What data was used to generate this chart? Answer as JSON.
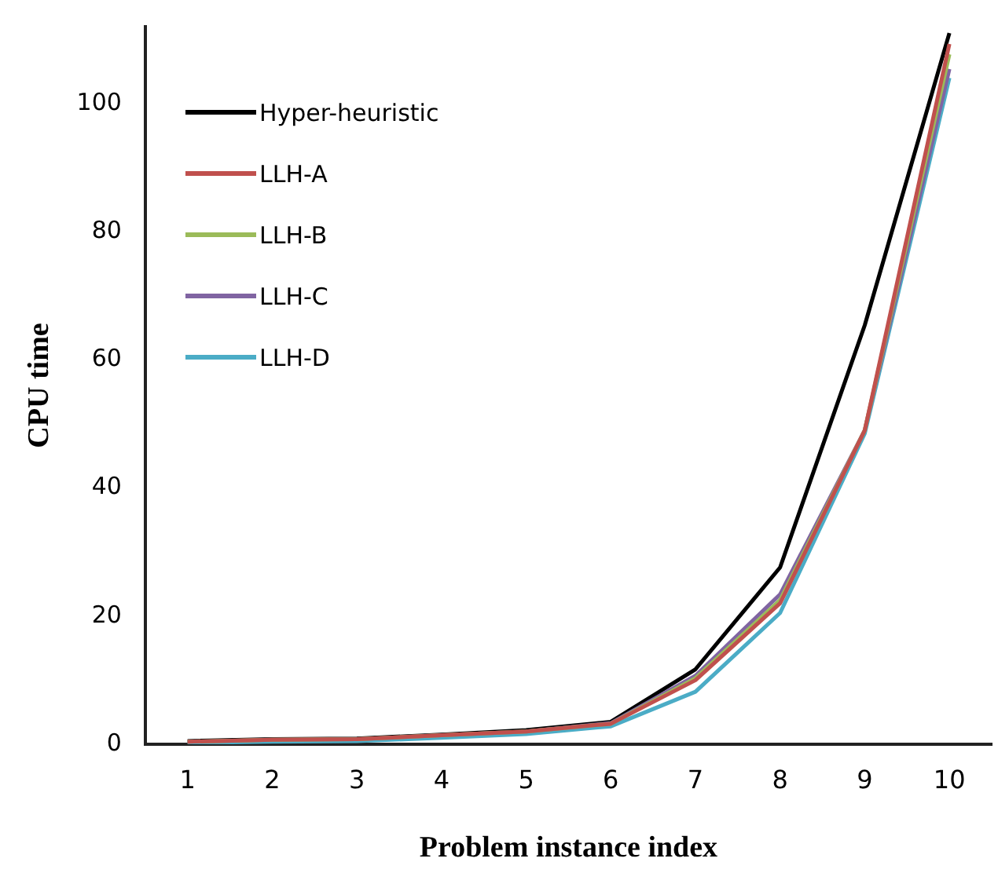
{
  "chart_data": {
    "type": "line",
    "xlabel": "Problem instance index",
    "ylabel": "CPU time",
    "categories": [
      "1",
      "2",
      "3",
      "4",
      "5",
      "6",
      "7",
      "8",
      "9",
      "10"
    ],
    "series": [
      {
        "name": "Hyper-heuristic",
        "color": "#000000",
        "values": [
          0.5,
          0.8,
          0.9,
          1.5,
          2.2,
          3.5,
          11.7,
          27.6,
          65.4,
          111
        ]
      },
      {
        "name": "LLH-A",
        "color": "#c0504d",
        "values": [
          0.4,
          0.7,
          0.8,
          1.4,
          2.0,
          3.2,
          10.0,
          22,
          49,
          109.3
        ]
      },
      {
        "name": "LLH-B",
        "color": "#9bbb59",
        "values": [
          0.4,
          0.7,
          0.8,
          1.4,
          2.0,
          3.2,
          10.3,
          22.5,
          49,
          107.7
        ]
      },
      {
        "name": "LLH-C",
        "color": "#8064a2",
        "values": [
          0.4,
          0.7,
          0.8,
          1.4,
          2.0,
          3.3,
          10.7,
          23.4,
          49,
          105.4
        ]
      },
      {
        "name": "LLH-D",
        "color": "#4bacc6",
        "values": [
          0.2,
          0.4,
          0.5,
          1.0,
          1.6,
          2.8,
          8.2,
          20.5,
          48.5,
          104
        ]
      }
    ],
    "ylim": [
      0,
      112
    ],
    "yticks": [
      0,
      20,
      40,
      60,
      80,
      100
    ],
    "grid": false,
    "legend": "top left",
    "marker": "none",
    "line_style": "solid"
  }
}
